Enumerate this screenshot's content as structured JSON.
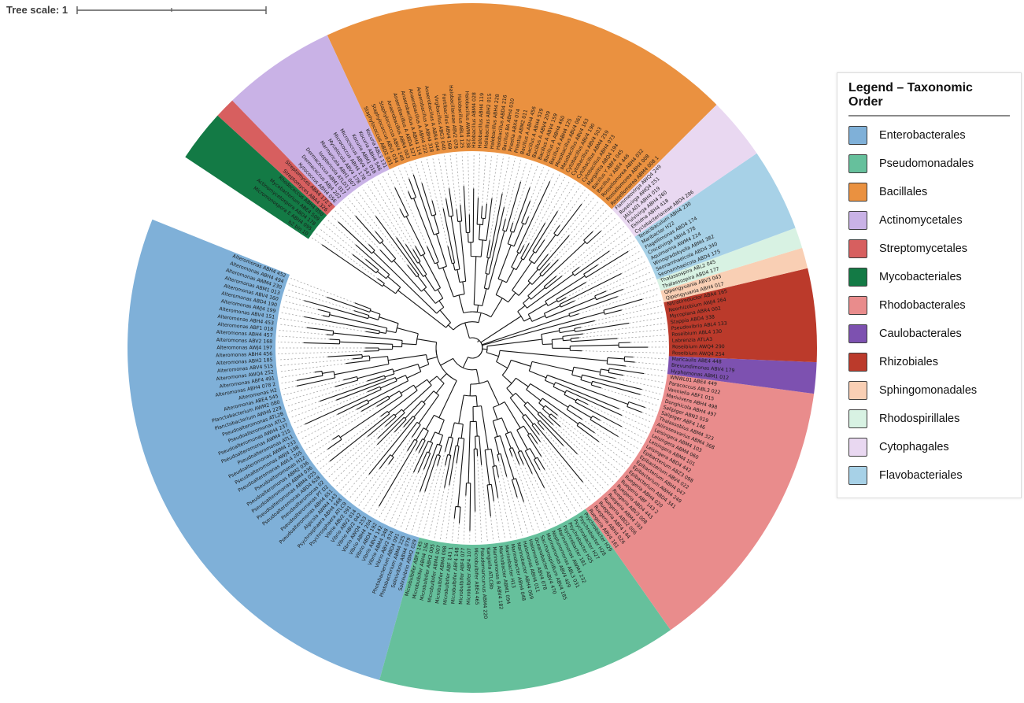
{
  "tree_scale": {
    "label": "Tree scale: 1",
    "value": "1"
  },
  "legend": {
    "title": "Legend – Taxonomic Order",
    "items": [
      {
        "label": "Enterobacterales",
        "color": "#7fb0d8"
      },
      {
        "label": "Pseudomonadales",
        "color": "#66c09c"
      },
      {
        "label": "Bacillales",
        "color": "#ea9140"
      },
      {
        "label": "Actinomycetales",
        "color": "#c9b2e6"
      },
      {
        "label": "Streptomycetales",
        "color": "#d75f5f"
      },
      {
        "label": "Mycobacteriales",
        "color": "#137a45"
      },
      {
        "label": "Rhodobacterales",
        "color": "#e98c8c"
      },
      {
        "label": "Caulobacterales",
        "color": "#7d51b0"
      },
      {
        "label": "Rhizobiales",
        "color": "#bb3a2b"
      },
      {
        "label": "Sphingomonadales",
        "color": "#f9cfb4"
      },
      {
        "label": "Rhodospirillales",
        "color": "#d8f2e3"
      },
      {
        "label": "Cytophagales",
        "color": "#e9d8f1"
      },
      {
        "label": "Flavobacteriales",
        "color": "#a7d1e7"
      }
    ]
  },
  "chart_data": {
    "type": "circular_phylogenetic_tree",
    "leaf_count": 199,
    "leaf_order": "counterclockwise from upper-left gap",
    "groups": [
      {
        "order": "Enterobacterales",
        "color": "#7fb0d8",
        "leaves": [
          "Alteromonas ABH4 452",
          "Alteromonas ABH4 494",
          "Alteromonas AWM4 230",
          "Alteromonas ABM1 013",
          "Alteromonas ABV4 160",
          "Alteromonas ABD4 190",
          "Alteromonas AWJ4 199",
          "Alteromonas ABV4 151",
          "Alteromonas ABH4 453",
          "Alteromonas ABF1 018",
          "Alteromonas ABH4 457",
          "Alteromonas ABV2 168",
          "Alteromonas AWJ4 197",
          "Alteromonas ABH4 456",
          "Alteromonas ABH2 185",
          "Alteromonas ABV4 515",
          "Alteromonas AWQ4 252",
          "Alteromonas ABF4 491",
          "Alteromonas ABH4 078 2",
          "Alteromonas H2",
          "Alteromonas ABE4 545",
          "Planctobacterium AWM2 080",
          "Planctobacterium AWH4 229",
          "Pseudoalteromonas ATL2B",
          "Pseudoalteromonas ATL3",
          "Pseudoalteromonas AWH4 237",
          "Pseudoalteromonas AWM4 215",
          "Pseudoalteromonas ATL1",
          "Pseudoalteromonas AWM4 233",
          "Pseudoalteromonas AWJ4 198",
          "Pseudoalteromonas AWL4 205",
          "Pseudoalteromonas H12",
          "Pseudoalteromonas ABM2 036",
          "Pseudoalteromonas ABM4 036",
          "Pseudoalteromonas ABM4 025",
          "Pseudoalteromonas ABD4 628",
          "Pseudoalteromonas 02",
          "Pseudoalteromonas PT D2",
          "Pseudoalteromonas ABH4 651",
          "Algicola AWM4 143",
          "Psychrosphaera ABH4 568",
          "Psychrosphaera ATLC9",
          "Vibrio ABV2 091",
          "Vibrio ABV2 014",
          "Vibrio ABV2 042",
          "Vibrio AWQ4 253",
          "Vibrio ABH4 204",
          "Vibrio ABD4 192",
          "Vibrio ABV4 142",
          "Vibrio ABM4 348",
          "Vibrio ABV2 074",
          "Photobacterium ABD4 091",
          "Photobacterium ABM4 225",
          "Salinivibrio ABH4 079",
          "Salinivibrio ABM2 029"
        ]
      },
      {
        "order": "Pseudomonadales",
        "color": "#66c09c",
        "leaves": [
          "Microbulbifer ABF4 145",
          "Microbulbifer ABH4 156",
          "Microbulbifer ABH2 005",
          "Microbulbifer ABM4 007",
          "Microbulbifer ABM4 098",
          "Microbulbifer ABF 143 1",
          "Microbulbifer ABF4 148",
          "Microbulbifer ABF4 077",
          "Microbulbifer ABF4 107",
          "Microbulbifer ABE4 465",
          "Pseudomaricurvus ABM4 220",
          "Kangiella ATLC8b",
          "Marinomonas B ABV4 182",
          "Marinobacter ABM1 094",
          "Marinobacter H13",
          "Marinobacter ABH4 048",
          "Marinobacter ABH4 069",
          "Halomonas ABH4 011",
          "Halomonas ABV4 078",
          "Oceanobacter ABV4 470",
          "Saccharospirillum ABV4 185",
          "Marinomonas ABV4 409",
          "Neptunomonas ABL3 031",
          "Marinomonas AWM4 232",
          "Psychrobacter 181",
          "Psychrobacter H25",
          "Psychrobacter H27",
          "Psychrobacter H28",
          "Psychrobacter H29"
        ]
      },
      {
        "order": "Rhodobacterales",
        "color": "#e98c8c",
        "leaves": [
          "Ruegeria ABV4 161",
          "Ruegeria ABH4 026",
          "Ruegeria ABF4 144",
          "Ruegeria ABD2 006",
          "Ruegeria ABM4 193",
          "Ruegeria ABV3 008",
          "Ruegeria ABD4 443",
          "Ruegeria ABF 143 2",
          "Ruegeria ABH4 020",
          "Epibacterium ABD4 341",
          "Epibacterium AWH4 249",
          "Epibacterium ABH4 047",
          "Epibacterium ABV4 022",
          "Epibacterium ABZ3 098",
          "Leisingera ABD4 442",
          "Leisingera ABM4 101",
          "Leisingera ABM4 060",
          "Leisingera ABM4 103",
          "Aliiroseovarius ABM4 368",
          "Thalassobius ABM4 323",
          "Salipiger ABF4 146",
          "Salipiger ABN3 019",
          "Donghicola ABH4 497",
          "Marivivens ABH4 498",
          "Vannielia ABF1 015",
          "Paracoccus ABL3 022",
          "WNWL01 ABE4 449"
        ]
      },
      {
        "order": "Caulobacterales",
        "color": "#7d51b0",
        "leaves": [
          "Hyphomonas ABM1 012",
          "Brevundimonas ABV4 179",
          "Maricaulis ABE4 448"
        ]
      },
      {
        "order": "Rhizobiales",
        "color": "#bb3a2b",
        "leaves": [
          "Roseibium AWQ4 254",
          "Roseibium AWQ4 290",
          "Labrenzia ATLA3",
          "Roseibium ABL4 130",
          "Pseudovibrio ABL4 133",
          "Stappia ABD4 338",
          "Mycoplana ABR4 002",
          "Neorhizobium AWJ4 264",
          "Nitratireductor ABA4 165"
        ]
      },
      {
        "order": "Sphingomonadales",
        "color": "#f9cfb4",
        "leaves": [
          "Qipengyuania ABH4 017",
          "Qipengyuania ABV3 043"
        ]
      },
      {
        "order": "Rhodospirillales",
        "color": "#d8f2e3",
        "leaves": [
          "Thalassospira ABD4 177",
          "Thalassospira ABL2 045"
        ]
      },
      {
        "order": "Flavobacteriales",
        "color": "#a7d1e7",
        "leaves": [
          "Seonamhaeicola ABD4 175",
          "Seonamhaeicola ABD4 340",
          "Winogradskyella ABM4 382",
          "Aquimarina AWM4 224",
          "Croceivirga ABH4 378",
          "Flagellimonas ABD4 174",
          "Maribacter H22",
          "Tenacibaculum ABH4 230"
        ]
      },
      {
        "order": "Cytophagales",
        "color": "#e9d8f1",
        "leaves": [
          "Cyclobacteriaceae ABD4 286",
          "Ekhidna ABH4 418",
          "Fulvivirga ABH4 260",
          "JAULA01 ABH4 019",
          "Roseivirga AWQ4 251",
          "Flammeovirga AWQ4 249"
        ]
      },
      {
        "order": "Bacillales",
        "color": "#ea9140",
        "leaves": [
          "Rossellomorea ABM4 008 1",
          "Rossellomorea ABH4 008",
          "Rossellomorea ABH4 032",
          "Bacillus Y ABE4 446",
          "Bacillus Y ABF4 045",
          "Margalitia ABQ4 194",
          "Cytobacillus ABH4 073",
          "Cytobacillus ABM4 259",
          "Cytobacillus ABV4 503",
          "Cytobacillus ABV4 190",
          "Mesobacillus ABV4 163",
          "Mesobacillus ABV4 061",
          "Bacillus A ABH4 125",
          "Bacillus A ABH4 460",
          "Bacillus A ABV4 159",
          "Bacillus A ABV4 209",
          "Bacillus A ABH4 529",
          "Bacillus A ABH4 456",
          "Priestia ABM2 011",
          "Priestia ABX4 074",
          "Bacillus BA ABH4 010",
          "Halobacillus ABD4 216",
          "Halobacillus ABH4 228",
          "Halobacillus ABH2 015",
          "Halobacillus ABH4 119",
          "Halobacillus ABM4 028",
          "Halobacillus AWM4 238",
          "Halobacillus ABL4 125",
          "Halobacillaceae ABV2 078",
          "Fontibacillus ABV4 169",
          "Virgibacillus ABG3 040",
          "Anaerobacillus A ABR4 044",
          "Anaerobacillus A ABH4 318",
          "Anaerobacillus A ABH4 222",
          "Anaerobacillus A ABH4 114",
          "Anaerobacillus A ABD4 527",
          "Anaerobacillus ABR4 003",
          "Staphylococcus ABV4 149",
          "Staphylococcus ABV1 034",
          "Staphylococcus ABD2 031"
        ]
      },
      {
        "order": "Actinomycetales",
        "color": "#c9b2e6",
        "leaves": [
          "Kocuria ABL3 131",
          "Kocuria ABH4 546",
          "Kocuria ABM1 018",
          "Micrococcus ABV4 547",
          "Micrococcus ABH4 178",
          "Mycetocola ABV4 178",
          "Marmoricola ABH1 007",
          "Isoptericola ATLD11",
          "Dermacoccus ABM1 017",
          "Dermacoccus ABJ4 202",
          "Kytococcus ABH4 056"
        ]
      },
      {
        "order": "Streptomycetales",
        "color": "#d75f5f",
        "leaves": [
          "Streptomyces ABA4 172 2",
          "Streptomyces ABA4 326"
        ]
      },
      {
        "order": "Mycobacteriales",
        "color": "#137a45",
        "leaves": [
          "Rhodococcus ABH4 050",
          "Mycobacterium ABE4 509",
          "Actinomycetospora ABD4 178",
          "Micromonospora E ABH4 095",
          "b2 bin 10"
        ]
      }
    ]
  }
}
